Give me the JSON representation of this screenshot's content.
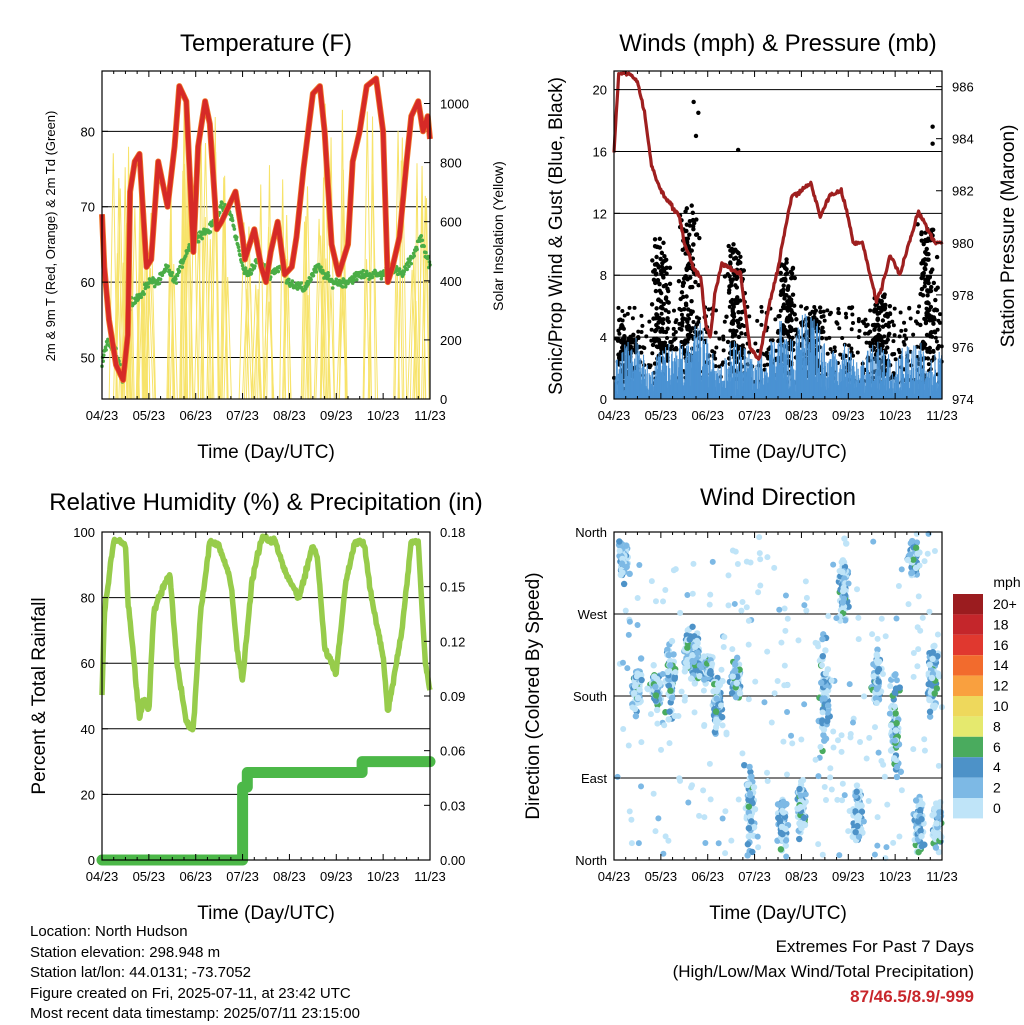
{
  "xticks": [
    "04/23",
    "05/23",
    "06/23",
    "07/23",
    "08/23",
    "09/23",
    "10/23",
    "11/23"
  ],
  "info": {
    "location": "Location: North Hudson",
    "elevation": "Station elevation: 298.948 m",
    "latlon": "Station lat/lon: 44.0131; -73.7052",
    "created": "Figure created on Fri, 2025-07-11, at 23:42 UTC",
    "recent": "Most recent data timestamp: 2025/07/11 23:15:00"
  },
  "extremes": {
    "title": "Extremes For Past 7 Days",
    "subtitle": "(High/Low/Max Wind/Total Precipitation)",
    "values": "87/46.5/8.9/-999"
  },
  "chart_data": [
    {
      "type": "line",
      "title": "Temperature (F)",
      "xlabel": "Time (Day/UTC)",
      "ylabel": "2m & 9m T (Red, Orange) & 2m Td (Green)",
      "ylabel_right": "Solar Insolation (Yellow)",
      "ylim": [
        44.5,
        88
      ],
      "y_ticks": [
        50,
        60,
        70,
        80
      ],
      "ylim_right": [
        0,
        1110
      ],
      "y_ticks_right": [
        0,
        200,
        400,
        600,
        800,
        1000
      ],
      "grid": true,
      "series": [
        {
          "color": "#d62a27",
          "x": [
            0,
            0.05,
            0.15,
            0.3,
            0.45,
            0.55,
            0.6,
            0.7,
            0.8,
            0.95,
            1.05,
            1.2,
            1.4,
            1.55,
            1.65,
            1.8,
            1.95,
            2.05,
            2.2,
            2.3,
            2.45,
            2.55,
            2.7,
            2.85,
            3,
            3.05,
            3.25,
            3.4,
            3.5,
            3.6,
            3.75,
            3.9,
            4.05,
            4.15,
            4.3,
            4.5,
            4.65,
            4.75,
            4.9,
            5.05,
            5.25,
            5.35,
            5.5,
            5.65,
            5.85,
            6,
            6.1,
            6.2,
            6.35,
            6.5,
            6.6,
            6.75,
            6.85,
            6.95,
            7
          ],
          "values": [
            69,
            62,
            55,
            49,
            47,
            53,
            72,
            76,
            77,
            62,
            63,
            76,
            70,
            78,
            86,
            84,
            64,
            78,
            84,
            81,
            67,
            68,
            70,
            72,
            66,
            63,
            67,
            62,
            60,
            64,
            68,
            61,
            62,
            66,
            75,
            85,
            86,
            80,
            65,
            61,
            65,
            76,
            80,
            86,
            87,
            80,
            60,
            62,
            66,
            76,
            82,
            84,
            80,
            82,
            79
          ]
        },
        {
          "color": "#f07a2a",
          "x": [
            0.6,
            0.7,
            0.8,
            1.65,
            1.8,
            2.2,
            2.3,
            2.55,
            2.7,
            4.5,
            4.65,
            5.65,
            5.85,
            6.6,
            6.75,
            6.95
          ],
          "values": [
            74,
            77,
            77,
            86,
            85,
            85,
            82,
            69,
            71,
            85,
            86,
            86,
            87,
            82,
            84,
            80
          ]
        },
        {
          "color": "#4aad46",
          "x": [
            0,
            0.1,
            0.3,
            0.45,
            0.6,
            0.8,
            1.0,
            1.2,
            1.4,
            1.55,
            1.8,
            2.0,
            2.3,
            2.55,
            2.75,
            3.0,
            3.1,
            3.35,
            3.55,
            3.8,
            4.0,
            4.3,
            4.6,
            4.9,
            5.2,
            5.5,
            5.8,
            6.0,
            6.15,
            6.4,
            6.6,
            6.8,
            7
          ],
          "values": [
            49,
            52,
            51,
            47,
            57,
            58,
            60,
            60,
            62,
            60,
            64,
            66,
            67,
            70,
            69,
            62,
            61,
            63,
            61,
            62,
            60,
            59,
            62,
            60,
            60,
            61,
            61,
            61,
            62,
            61,
            63,
            66,
            62
          ]
        },
        {
          "color": "#f7e36a",
          "x": [
            0.3,
            0.5,
            0.55,
            0.75,
            0.85,
            1.05,
            1.45,
            1.7,
            1.9,
            2.15,
            2.4,
            2.65,
            3.1,
            3.35,
            3.6,
            3.9,
            4.35,
            4.65,
            4.8,
            5.1,
            5.7,
            6.35,
            6.7,
            6.9
          ],
          "values_right": [
            900,
            950,
            1000,
            1020,
            1000,
            900,
            950,
            1000,
            1040,
            1000,
            1050,
            950,
            850,
            900,
            800,
            900,
            950,
            1000,
            1030,
            1050,
            1100,
            1000,
            850,
            900
          ]
        }
      ]
    },
    {
      "type": "scatter",
      "title": "Winds (mph) & Pressure (mb)",
      "xlabel": "Time (Day/UTC)",
      "ylabel": "Sonic/Prop Wind & Gust (Blue, Black)",
      "ylabel_right": "Station Pressure (Maroon)",
      "ylim": [
        0,
        21.2
      ],
      "y_ticks": [
        0,
        4,
        8,
        12,
        16,
        20
      ],
      "ylim_right": [
        974,
        986.6
      ],
      "y_ticks_right": [
        974,
        976,
        978,
        980,
        982,
        984,
        986
      ],
      "grid": true,
      "gust_clusters": [
        [
          0.3,
          3.5
        ],
        [
          1.0,
          9
        ],
        [
          1.6,
          11
        ],
        [
          2.6,
          9
        ],
        [
          3.7,
          8
        ],
        [
          4.25,
          5
        ],
        [
          5.7,
          6
        ],
        [
          6.7,
          10
        ]
      ],
      "gust_outliers": [
        [
          1.7,
          19.2
        ],
        [
          1.8,
          18.5
        ],
        [
          1.75,
          17.0
        ],
        [
          2.65,
          16.1
        ],
        [
          6.8,
          17.6
        ],
        [
          6.8,
          16.5
        ]
      ],
      "series": [
        {
          "name": "pressure",
          "color": "#9e1f1f",
          "x": [
            0,
            0.1,
            0.3,
            0.5,
            0.65,
            0.8,
            1.0,
            1.2,
            1.4,
            1.5,
            1.7,
            1.85,
            1.95,
            2.05,
            2.15,
            2.3,
            2.5,
            2.7,
            2.9,
            3.1,
            3.3,
            3.5,
            3.7,
            3.8,
            4.0,
            4.2,
            4.4,
            4.6,
            4.85,
            5.0,
            5.1,
            5.3,
            5.5,
            5.6,
            5.7,
            5.9,
            6.1,
            6.3,
            6.5,
            6.7,
            6.85,
            7
          ],
          "values_right": [
            983.5,
            986.5,
            986.5,
            986.2,
            985,
            983,
            982,
            981.5,
            981,
            980,
            979,
            978.7,
            977,
            976.3,
            978,
            979.2,
            979,
            978.8,
            976,
            975.5,
            977.5,
            979,
            981,
            981.8,
            982,
            982.3,
            981,
            981.8,
            982,
            981,
            980,
            980,
            978.5,
            977.8,
            978.2,
            979.5,
            978.8,
            980,
            981.2,
            980.5,
            980,
            980
          ]
        }
      ]
    },
    {
      "type": "line",
      "title": "Relative Humidity (%) & Precipitation (in)",
      "xlabel": "Time (Day/UTC)",
      "ylabel": "Percent & Total Rainfall",
      "ylim": [
        0,
        100
      ],
      "y_ticks": [
        0,
        20,
        40,
        60,
        80,
        100
      ],
      "ylim_right": [
        0,
        0.18
      ],
      "y_ticks_right": [
        "0.00",
        "0.03",
        "0.06",
        "0.09",
        "0.12",
        "0.15",
        "0.18"
      ],
      "grid": true,
      "series": [
        {
          "name": "rh",
          "color": "#97cc4b",
          "x": [
            0,
            0.05,
            0.25,
            0.5,
            0.55,
            0.8,
            0.9,
            1.0,
            1.1,
            1.2,
            1.45,
            1.6,
            1.8,
            1.95,
            2.1,
            2.3,
            2.5,
            2.75,
            2.9,
            3.0,
            3.2,
            3.4,
            3.7,
            3.9,
            4.2,
            4.5,
            4.6,
            4.75,
            4.9,
            5.0,
            5.2,
            5.4,
            5.6,
            5.75,
            6.0,
            6.1,
            6.4,
            6.6,
            6.75,
            6.9,
            7
          ],
          "values": [
            50,
            75,
            98,
            96,
            80,
            43,
            50,
            45,
            75,
            80,
            87,
            60,
            42,
            40,
            75,
            97,
            96,
            85,
            62,
            55,
            85,
            98,
            97,
            88,
            80,
            96,
            92,
            65,
            60,
            57,
            85,
            97,
            96,
            80,
            62,
            45,
            70,
            97,
            97,
            60,
            52
          ]
        },
        {
          "name": "precip",
          "color": "#4cb848",
          "x": [
            0,
            3.0,
            3.0,
            3.1,
            3.1,
            5.55,
            5.55,
            7
          ],
          "values_right": [
            0.0,
            0.0,
            0.04,
            0.04,
            0.048,
            0.048,
            0.054,
            0.054
          ]
        }
      ]
    },
    {
      "type": "scatter",
      "title": "Wind Direction",
      "xlabel": "Time (Day/UTC)",
      "ylabel": "Direction (Colored By Speed)",
      "y_ticks": [
        "North",
        "East",
        "South",
        "West",
        "North"
      ],
      "y_tick_degrees": [
        0,
        90,
        180,
        270,
        360
      ],
      "ylim": [
        0,
        360
      ],
      "legend_title": "mph",
      "legend_labels": [
        "20+",
        "18",
        "16",
        "14",
        "12",
        "10",
        "8",
        "6",
        "4",
        "2",
        "0"
      ],
      "legend_colors": [
        "#9b1c1f",
        "#c4262b",
        "#e0382f",
        "#f26b2d",
        "#f9a03f",
        "#eed85c",
        "#e5e96e",
        "#4aab5e",
        "#4d92c8",
        "#7db9e5",
        "#bfe4f8"
      ],
      "clusters": [
        [
          0.2,
          330,
          30
        ],
        [
          0.5,
          190,
          40
        ],
        [
          0.9,
          190,
          30
        ],
        [
          1.2,
          200,
          60
        ],
        [
          1.6,
          230,
          30
        ],
        [
          1.75,
          220,
          40
        ],
        [
          2.0,
          210,
          20
        ],
        [
          2.2,
          170,
          40
        ],
        [
          2.6,
          200,
          30
        ],
        [
          2.9,
          60,
          80
        ],
        [
          3.6,
          40,
          40
        ],
        [
          4.0,
          60,
          50
        ],
        [
          4.5,
          180,
          80
        ],
        [
          4.9,
          300,
          60
        ],
        [
          5.2,
          50,
          50
        ],
        [
          5.6,
          200,
          40
        ],
        [
          6.0,
          150,
          70
        ],
        [
          6.4,
          330,
          30
        ],
        [
          6.5,
          40,
          40
        ],
        [
          6.8,
          200,
          50
        ],
        [
          6.9,
          40,
          40
        ]
      ],
      "grid": true
    }
  ]
}
